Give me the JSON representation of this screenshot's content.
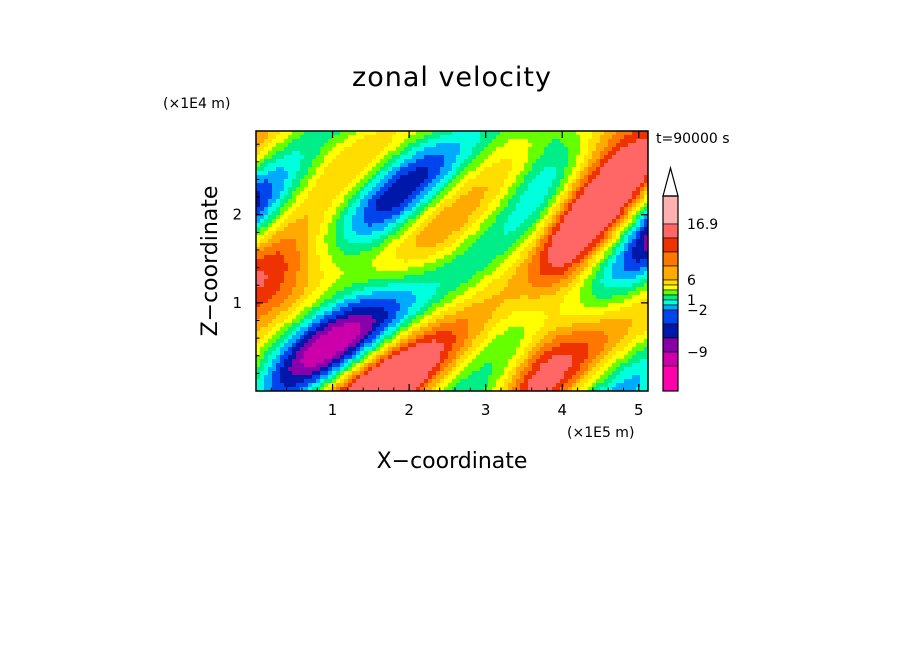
{
  "chart_data": {
    "type": "heatmap",
    "title": "zonal velocity",
    "xlabel": "X−coordinate",
    "ylabel": "Z−coordinate",
    "x_unit": "(×1E5 m)",
    "y_unit": "(×1E4 m)",
    "time_label": "t=90000 s",
    "xlim": [
      0,
      5.12
    ],
    "ylim": [
      0,
      2.95
    ],
    "x_ticks": [
      1,
      2,
      3,
      4,
      5
    ],
    "x_tick_labels": [
      "1",
      "2",
      "3",
      "4",
      "5"
    ],
    "y_ticks": [
      1,
      2
    ],
    "y_tick_labels": [
      "1",
      "2"
    ],
    "colorbar": {
      "labels": [
        "16.9",
        "6",
        "1",
        "−2",
        "−9"
      ],
      "colors": [
        "#ff00aa",
        "#cc00aa",
        "#8800aa",
        "#0018aa",
        "#0044ee",
        "#00aaff",
        "#00ffdd",
        "#00ee88",
        "#66ff00",
        "#ffff00",
        "#ffdd00",
        "#ffaa00",
        "#ff7700",
        "#ee3300",
        "#ff6666",
        "#ffb0b0"
      ],
      "extend_max": true
    },
    "z_min": -14,
    "z_max": 17
  }
}
